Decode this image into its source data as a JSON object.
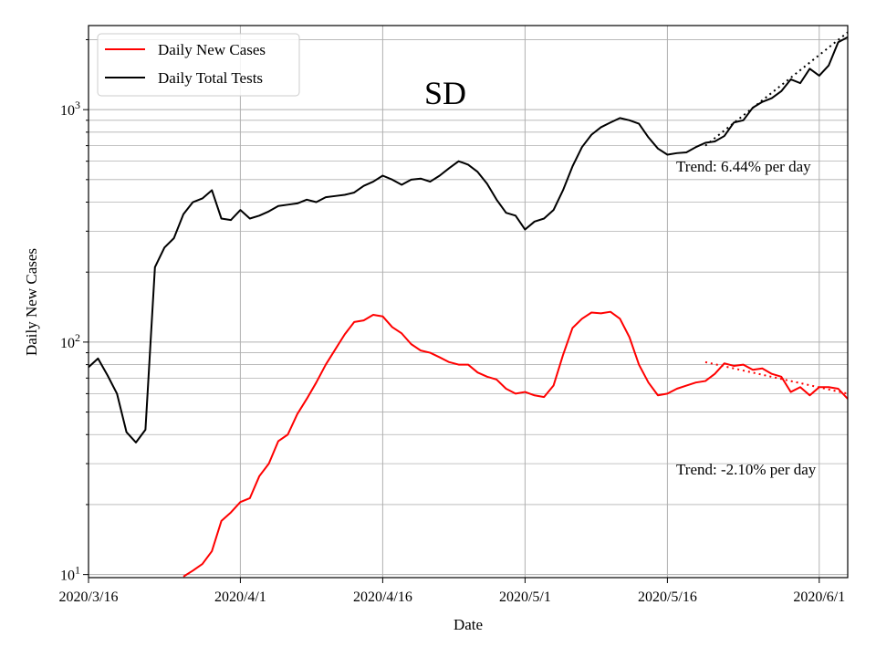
{
  "chart_data": {
    "type": "line",
    "title": "SD",
    "xlabel": "Date",
    "ylabel": "Daily New Cases",
    "yscale": "log",
    "ylim": [
      9.7,
      2300
    ],
    "xlim_days": [
      0,
      80
    ],
    "x_start_date": "2020/3/16",
    "x_ticks": [
      {
        "day": 0,
        "label": "2020/3/16"
      },
      {
        "day": 16,
        "label": "2020/4/1"
      },
      {
        "day": 31,
        "label": "2020/4/16"
      },
      {
        "day": 46,
        "label": "2020/5/1"
      },
      {
        "day": 61,
        "label": "2020/5/16"
      },
      {
        "day": 77,
        "label": "2020/6/1"
      }
    ],
    "y_ticks": [
      {
        "value": 10,
        "base": "10",
        "exp": "1"
      },
      {
        "value": 100,
        "base": "10",
        "exp": "2"
      },
      {
        "value": 1000,
        "base": "10",
        "exp": "3"
      }
    ],
    "grid": true,
    "legend_position": "top-left",
    "legend": [
      "Daily New Cases",
      "Daily Total Tests"
    ],
    "series": [
      {
        "name": "Daily New Cases",
        "color": "#ff0000",
        "x": [
          10,
          11,
          12,
          13,
          14,
          15,
          16,
          17,
          18,
          19,
          20,
          21,
          22,
          23,
          24,
          25,
          26,
          27,
          28,
          29,
          30,
          31,
          32,
          33,
          34,
          35,
          36,
          37,
          38,
          39,
          40,
          41,
          42,
          43,
          44,
          45,
          46,
          47,
          48,
          49,
          50,
          51,
          52,
          53,
          54,
          55,
          56,
          57,
          58,
          59,
          60,
          61,
          62,
          63,
          64,
          65,
          66,
          67,
          68,
          69,
          70,
          71,
          72,
          73,
          74,
          75,
          76,
          77,
          78,
          79,
          80
        ],
        "values": [
          9.8,
          10.4,
          11.1,
          12.6,
          17.0,
          18.5,
          20.5,
          21.3,
          26.5,
          30.0,
          37.5,
          40.0,
          49.0,
          57.0,
          67.0,
          80.0,
          93.0,
          108,
          122,
          124,
          131,
          129,
          116,
          109,
          98,
          92,
          90,
          86,
          82,
          80,
          80,
          74,
          71,
          69,
          63,
          60,
          61,
          59,
          58,
          65,
          88,
          115,
          126,
          134,
          133,
          135,
          126,
          105,
          80,
          67,
          59,
          60,
          63,
          65,
          67,
          68,
          73,
          81,
          79,
          80,
          76,
          77,
          73,
          71,
          61,
          64,
          59,
          64,
          64,
          63,
          57
        ],
        "trend": {
          "start_day": 65,
          "end_day": 80,
          "start_value": 82,
          "end_value": 60
        },
        "trend_label": "Trend: -2.10% per day"
      },
      {
        "name": "Daily Total Tests",
        "color": "#000000",
        "x": [
          0,
          1,
          2,
          3,
          4,
          5,
          6,
          7,
          8,
          9,
          10,
          11,
          12,
          13,
          14,
          15,
          16,
          17,
          18,
          19,
          20,
          21,
          22,
          23,
          24,
          25,
          26,
          27,
          28,
          29,
          30,
          31,
          32,
          33,
          34,
          35,
          36,
          37,
          38,
          39,
          40,
          41,
          42,
          43,
          44,
          45,
          46,
          47,
          48,
          49,
          50,
          51,
          52,
          53,
          54,
          55,
          56,
          57,
          58,
          59,
          60,
          61,
          62,
          63,
          64,
          65,
          66,
          67,
          68,
          69,
          70,
          71,
          72,
          73,
          74,
          75,
          76,
          77,
          78,
          79,
          80
        ],
        "values": [
          78,
          85,
          72,
          60,
          41,
          37,
          42,
          210,
          255,
          280,
          355,
          400,
          415,
          450,
          340,
          335,
          370,
          340,
          350,
          365,
          385,
          390,
          395,
          410,
          400,
          420,
          425,
          430,
          440,
          470,
          490,
          520,
          500,
          475,
          500,
          505,
          490,
          520,
          560,
          600,
          580,
          540,
          480,
          410,
          360,
          350,
          305,
          330,
          340,
          370,
          450,
          570,
          690,
          780,
          840,
          880,
          920,
          900,
          870,
          760,
          680,
          640,
          650,
          655,
          690,
          720,
          730,
          770,
          880,
          900,
          1020,
          1080,
          1120,
          1200,
          1350,
          1300,
          1500,
          1400,
          1550,
          1950,
          2050
        ]
      }
    ],
    "tests_trend": {
      "start_day": 65,
      "end_day": 80,
      "start_value": 700,
      "end_value": 2150
    },
    "tests_trend_label": "Trend: 6.44% per day"
  }
}
